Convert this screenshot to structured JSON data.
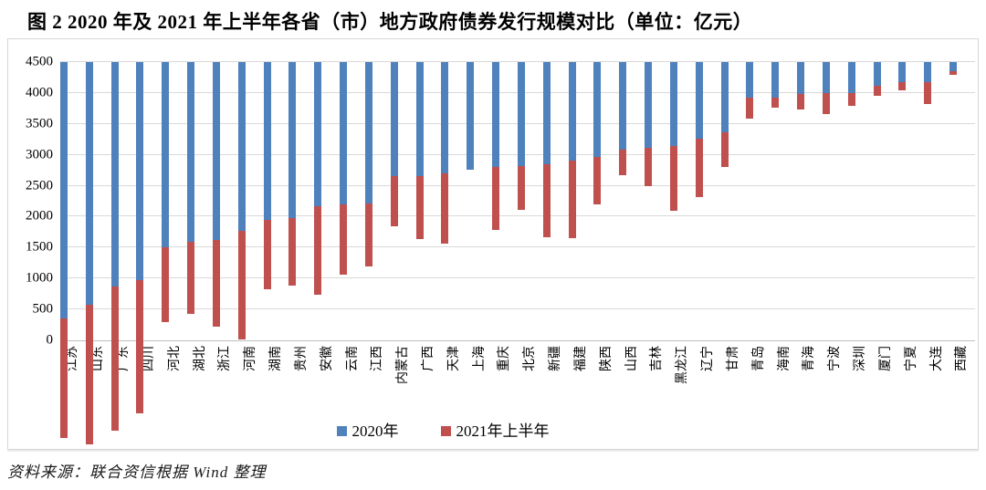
{
  "figure": {
    "title": "图 2  2020 年及 2021 年上半年各省（市）地方政府债券发行规模对比（单位：亿元）",
    "source": "资料来源：联合资信根据 Wind 整理"
  },
  "colors": {
    "series_2020": "#4f81bd",
    "series_2021h1": "#c0504d",
    "gridline": "#d9d9d9",
    "frame_border": "#d6d6d6"
  },
  "chart_data": {
    "type": "bar",
    "title": "2020 年及 2021 年上半年各省（市）地方政府债券发行规模对比",
    "unit": "亿元",
    "grid": true,
    "legend_position": "bottom",
    "ylim": [
      0,
      4500
    ],
    "y_ticks": [
      0,
      500,
      1000,
      1500,
      2000,
      2500,
      3000,
      3500,
      4000,
      4500
    ],
    "categories": [
      "江苏",
      "山东",
      "广东",
      "四川",
      "河北",
      "湖北",
      "浙江",
      "河南",
      "湖南",
      "贵州",
      "安徽",
      "云南",
      "江西",
      "内蒙古",
      "广西",
      "天津",
      "上海",
      "重庆",
      "北京",
      "新疆",
      "福建",
      "陕西",
      "山西",
      "吉林",
      "黑龙江",
      "辽宁",
      "甘肃",
      "青岛",
      "海南",
      "青海",
      "宁波",
      "深圳",
      "厦门",
      "宁夏",
      "大连",
      "西藏"
    ],
    "series": [
      {
        "name": "2020年",
        "color": "#4f81bd",
        "values": [
          4150,
          3920,
          3630,
          3530,
          3000,
          2900,
          2880,
          2730,
          2550,
          2520,
          2330,
          2300,
          2290,
          1840,
          1840,
          1800,
          1740,
          1700,
          1680,
          1650,
          1590,
          1530,
          1410,
          1390,
          1360,
          1240,
          1130,
          580,
          575,
          510,
          505,
          500,
          390,
          325,
          320,
          150
        ]
      },
      {
        "name": "2021年上半年",
        "color": "#c0504d",
        "values": [
          1930,
          2260,
          2330,
          2150,
          1210,
          1170,
          1400,
          1760,
          1120,
          1090,
          1430,
          1140,
          1010,
          820,
          1020,
          1130,
          0,
          1010,
          710,
          1180,
          1260,
          770,
          420,
          610,
          1050,
          950,
          570,
          340,
          160,
          250,
          340,
          210,
          160,
          130,
          360,
          60
        ]
      }
    ]
  }
}
